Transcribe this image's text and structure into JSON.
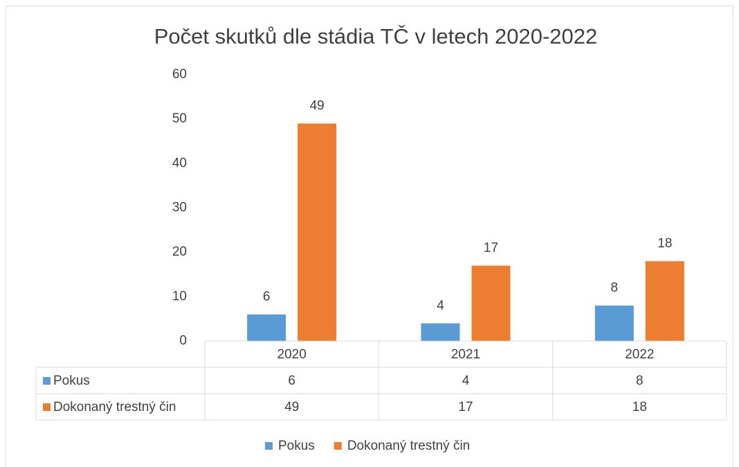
{
  "chart_data": {
    "type": "bar",
    "title": "Počet skutků dle stádia TČ v letech 2020-2022",
    "categories": [
      "2020",
      "2021",
      "2022"
    ],
    "series": [
      {
        "name": "Pokus",
        "color": "#5b9bd5",
        "values": [
          6,
          4,
          8
        ]
      },
      {
        "name": "Dokonaný trestný čin",
        "color": "#ed7d31",
        "values": [
          49,
          17,
          18
        ]
      }
    ],
    "ylim": [
      0,
      60
    ],
    "yticks": [
      0,
      10,
      20,
      30,
      40,
      50,
      60
    ],
    "grid": false,
    "data_labels": true,
    "data_table": true,
    "legend": "bottom"
  }
}
